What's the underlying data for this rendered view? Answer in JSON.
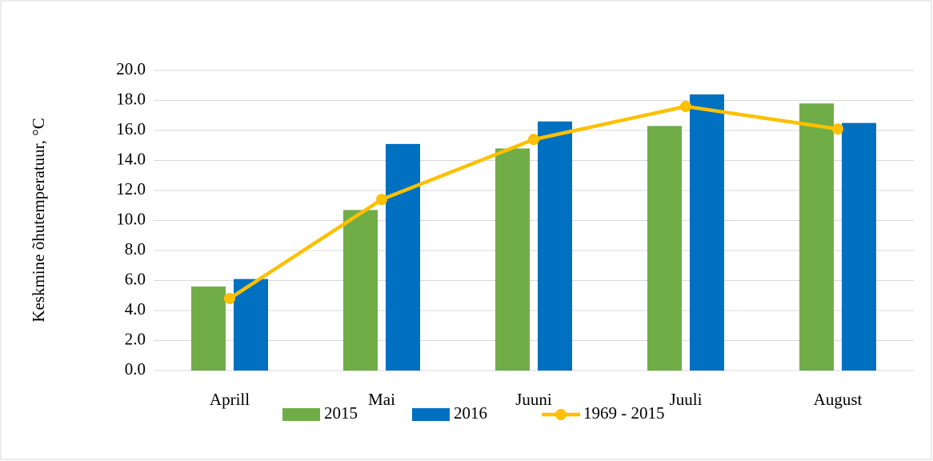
{
  "chart_data": {
    "type": "bar",
    "y_axis_label": "Keskmine õhutemperatuur, °C",
    "categories": [
      "Aprill",
      "Mai",
      "Juuni",
      "Juuli",
      "August"
    ],
    "series": [
      {
        "name": "2015",
        "type": "bar",
        "color": "#70ad47",
        "values": [
          5.6,
          10.7,
          14.8,
          16.3,
          17.8
        ]
      },
      {
        "name": "2016",
        "type": "bar",
        "color": "#0070c0",
        "values": [
          6.1,
          15.1,
          16.6,
          18.4,
          16.5
        ]
      },
      {
        "name": "1969 - 2015",
        "type": "line",
        "color": "#ffc000",
        "values": [
          4.8,
          11.4,
          15.4,
          17.6,
          16.1
        ]
      }
    ],
    "ylim": [
      0,
      20
    ],
    "yticks": [
      {
        "value": 0,
        "label": "0.0"
      },
      {
        "value": 2,
        "label": "2.0"
      },
      {
        "value": 4,
        "label": "4.0"
      },
      {
        "value": 6,
        "label": "6.0"
      },
      {
        "value": 8,
        "label": "8.0"
      },
      {
        "value": 10,
        "label": "10.0"
      },
      {
        "value": 12,
        "label": "12.0"
      },
      {
        "value": 14,
        "label": "14.0"
      },
      {
        "value": 16,
        "label": "16.0"
      },
      {
        "value": 18,
        "label": "18.0"
      },
      {
        "value": 20,
        "label": "20.0"
      }
    ],
    "grid": true,
    "legend": "bottom"
  }
}
